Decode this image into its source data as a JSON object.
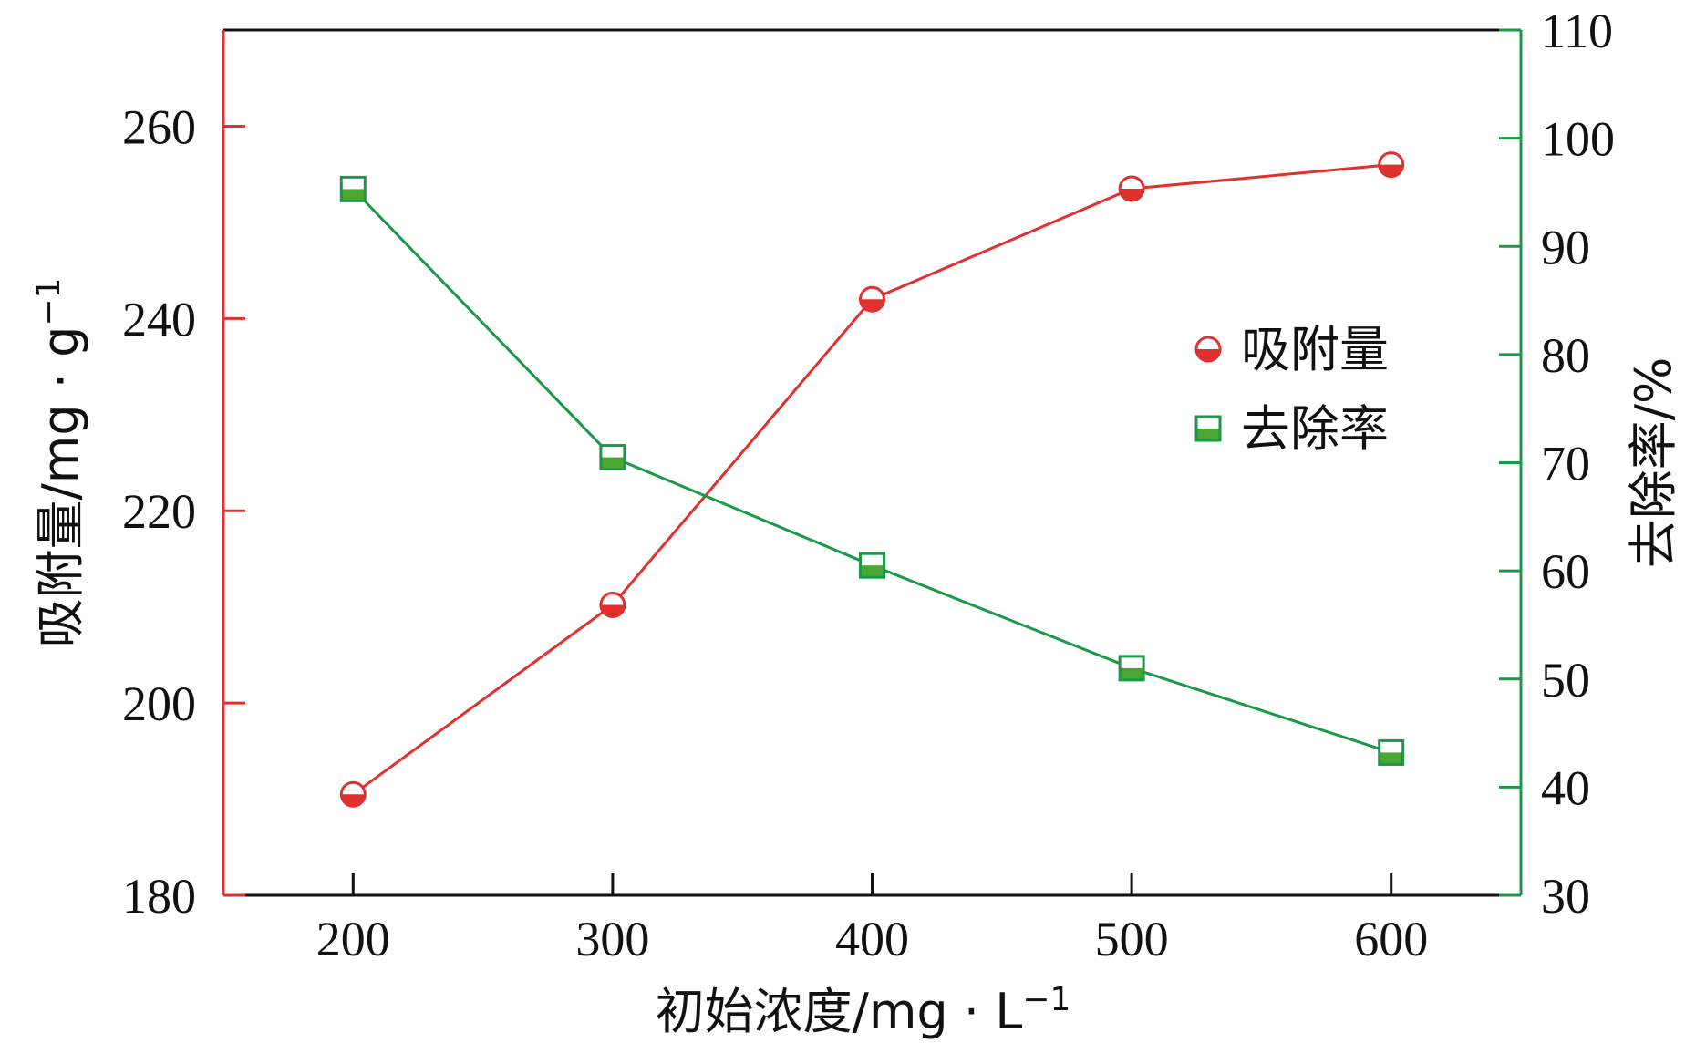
{
  "chart_data": {
    "type": "line",
    "x": [
      200,
      300,
      400,
      500,
      600
    ],
    "xlabel": "初始浓度/mg · L",
    "xlabel_sup": "−1",
    "xlim": [
      150,
      650
    ],
    "xticks": [
      200,
      300,
      400,
      500,
      600
    ],
    "y_left": {
      "label": "吸附量/mg · g",
      "label_sup": "−1",
      "range": [
        180,
        270
      ],
      "ticks": [
        180,
        200,
        220,
        240,
        260
      ],
      "color": "#e0312f"
    },
    "y_right": {
      "label": "去除率/%",
      "range": [
        30,
        110
      ],
      "ticks": [
        30,
        40,
        50,
        60,
        70,
        80,
        90,
        100,
        110
      ],
      "color": "#1a9a48"
    },
    "series": [
      {
        "name": "吸附量",
        "axis": "left",
        "marker": "circle-half",
        "color": "#e0312f",
        "values": [
          190.5,
          210.2,
          242.0,
          253.5,
          256.0
        ]
      },
      {
        "name": "去除率",
        "axis": "right",
        "marker": "square-half",
        "color": "#1a9a48",
        "marker_fill": "#4aa832",
        "values": [
          95.3,
          70.5,
          60.5,
          51.0,
          43.2
        ]
      }
    ],
    "legend": "upper-right-inside",
    "grid": false
  }
}
